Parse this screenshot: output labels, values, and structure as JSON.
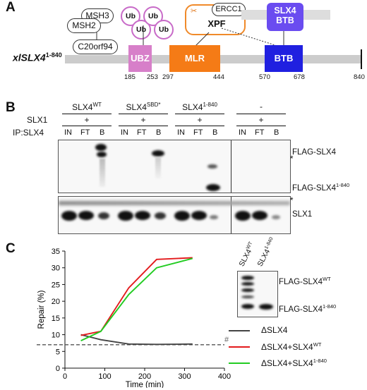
{
  "panelA": {
    "letter": "A",
    "construct_label": "xlSLX4",
    "construct_sup": "1-840",
    "partners": [
      "MSH3",
      "MSH2",
      "C20orf94"
    ],
    "ub_labels": [
      "Ub",
      "Ub",
      "Ub",
      "Ub"
    ],
    "ercc1": "ERCC1",
    "xpf": "XPF",
    "slx4btb": "SLX4",
    "slx4btb2": "BTB",
    "domains": {
      "ubz": "UBZ",
      "mlr": "MLR",
      "btb": "BTB"
    },
    "ticks": [
      "185",
      "253",
      "297",
      "444",
      "570",
      "678",
      "840"
    ],
    "colors": {
      "ubz": "#d77fc9",
      "mlr": "#f57b16",
      "btb": "#2020e0",
      "ub_ring": "#c86bc8",
      "xpf_ring": "#f08a2a",
      "slx4btb": "#6a4cf0"
    }
  },
  "panelB": {
    "letter": "B",
    "groups": [
      {
        "name": "SLX4",
        "sup": "WT",
        "slx1": "+"
      },
      {
        "name": "SLX4",
        "sup": "SBD*",
        "slx1": "+"
      },
      {
        "name": "SLX4",
        "sup": "1-840",
        "slx1": "+"
      },
      {
        "name": "-",
        "sup": "",
        "slx1": "+"
      }
    ],
    "row_slx1": "SLX1",
    "row_ip": "IP:SLX4",
    "lanes": [
      "IN",
      "FT",
      "B"
    ],
    "markers": {
      "flag_slx4": "FLAG-SLX4",
      "flag_slx4_840": "FLAG-SLX4",
      "flag_slx4_840_sup": "1-840",
      "star": "*",
      "slx1": "SLX1"
    }
  },
  "panelC": {
    "letter": "C",
    "inset_lanes": [
      "SLX4",
      "SLX4"
    ],
    "inset_lane_sups": [
      "WT",
      "1-840"
    ],
    "inset_marker_wt": "FLAG-SLX4",
    "inset_marker_wt_sup": "WT",
    "inset_marker_840": "FLAG-SLX4",
    "inset_marker_840_sup": "1-840",
    "hash": "#",
    "chart_data": {
      "type": "line",
      "xlabel": "Time (min)",
      "ylabel": "Repair (%)",
      "xlim": [
        0,
        400
      ],
      "ylim": [
        0,
        35
      ],
      "xticks": [
        0,
        100,
        200,
        300,
        400
      ],
      "yticks": [
        0,
        5,
        10,
        15,
        20,
        25,
        30,
        35
      ],
      "background_level": 7,
      "legend_position": "bottom-right",
      "series": [
        {
          "name": "ΔSLX4",
          "color": "#444444",
          "x": [
            40,
            90,
            160,
            230,
            320
          ],
          "y": [
            10,
            8.5,
            7.2,
            7.1,
            7.2
          ]
        },
        {
          "name": "ΔSLX4+SLX4",
          "sup": "WT",
          "color": "#e31a1c",
          "x": [
            40,
            90,
            160,
            230,
            320
          ],
          "y": [
            9.8,
            11,
            24,
            32.5,
            33
          ]
        },
        {
          "name": "ΔSLX4+SLX4",
          "sup": "1-840",
          "color": "#22cc22",
          "x": [
            40,
            90,
            160,
            230,
            320
          ],
          "y": [
            8.2,
            11,
            22,
            30,
            32.8
          ]
        }
      ]
    }
  }
}
